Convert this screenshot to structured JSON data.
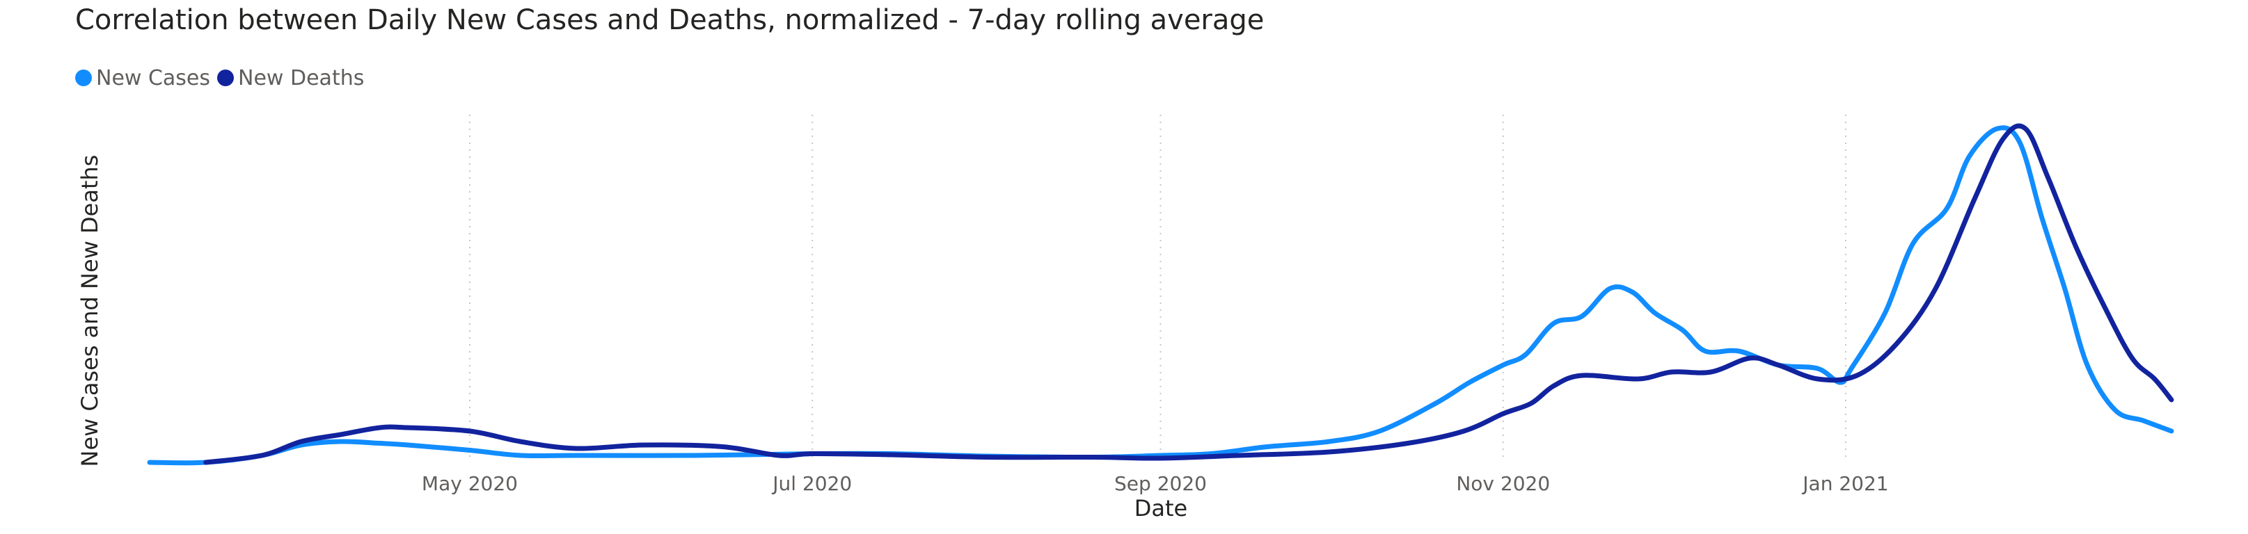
{
  "chart_data": {
    "type": "line",
    "title": "Correlation between Daily New Cases and Deaths, normalized - 7-day rolling average",
    "xlabel": "Date",
    "ylabel": "New Cases and New Deaths",
    "x_range": [
      "2020-03-05",
      "2021-02-28"
    ],
    "y_range": [
      0,
      1
    ],
    "grid": "vertical dotted at x ticks",
    "legend": "top-left",
    "x_ticks": [
      {
        "date": "2020-05-01",
        "label": "May 2020"
      },
      {
        "date": "2020-07-01",
        "label": "Jul 2020"
      },
      {
        "date": "2020-09-01",
        "label": "Sep 2020"
      },
      {
        "date": "2020-11-01",
        "label": "Nov 2020"
      },
      {
        "date": "2021-01-01",
        "label": "Jan 2021"
      }
    ],
    "series": [
      {
        "name": "New Cases",
        "color": "#118DFF",
        "points": [
          [
            "2020-03-05",
            0.0
          ],
          [
            "2020-03-15",
            0.0
          ],
          [
            "2020-03-25",
            0.02
          ],
          [
            "2020-04-01",
            0.05
          ],
          [
            "2020-04-08",
            0.06
          ],
          [
            "2020-04-15",
            0.055
          ],
          [
            "2020-04-20",
            0.05
          ],
          [
            "2020-05-01",
            0.035
          ],
          [
            "2020-05-10",
            0.02
          ],
          [
            "2020-05-20",
            0.02
          ],
          [
            "2020-06-10",
            0.02
          ],
          [
            "2020-07-01",
            0.025
          ],
          [
            "2020-07-15",
            0.025
          ],
          [
            "2020-08-01",
            0.018
          ],
          [
            "2020-08-20",
            0.015
          ],
          [
            "2020-09-01",
            0.02
          ],
          [
            "2020-09-10",
            0.025
          ],
          [
            "2020-09-20",
            0.045
          ],
          [
            "2020-10-01",
            0.06
          ],
          [
            "2020-10-10",
            0.09
          ],
          [
            "2020-10-20",
            0.17
          ],
          [
            "2020-10-26",
            0.23
          ],
          [
            "2020-11-01",
            0.28
          ],
          [
            "2020-11-05",
            0.31
          ],
          [
            "2020-11-10",
            0.4
          ],
          [
            "2020-11-15",
            0.42
          ],
          [
            "2020-11-20",
            0.5
          ],
          [
            "2020-11-24",
            0.49
          ],
          [
            "2020-11-28",
            0.43
          ],
          [
            "2020-12-03",
            0.38
          ],
          [
            "2020-12-07",
            0.32
          ],
          [
            "2020-12-13",
            0.32
          ],
          [
            "2020-12-20",
            0.28
          ],
          [
            "2020-12-27",
            0.27
          ],
          [
            "2020-12-31",
            0.23
          ],
          [
            "2021-01-02",
            0.27
          ],
          [
            "2021-01-08",
            0.43
          ],
          [
            "2021-01-13",
            0.63
          ],
          [
            "2021-01-19",
            0.73
          ],
          [
            "2021-01-23",
            0.88
          ],
          [
            "2021-01-28",
            0.96
          ],
          [
            "2021-02-01",
            0.92
          ],
          [
            "2021-02-05",
            0.7
          ],
          [
            "2021-02-09",
            0.5
          ],
          [
            "2021-02-13",
            0.28
          ],
          [
            "2021-02-18",
            0.15
          ],
          [
            "2021-02-23",
            0.12
          ],
          [
            "2021-02-28",
            0.09
          ]
        ]
      },
      {
        "name": "New Deaths",
        "color": "#12239E",
        "points": [
          [
            "2020-03-15",
            0.0
          ],
          [
            "2020-03-25",
            0.02
          ],
          [
            "2020-04-01",
            0.06
          ],
          [
            "2020-04-08",
            0.08
          ],
          [
            "2020-04-15",
            0.1
          ],
          [
            "2020-04-20",
            0.1
          ],
          [
            "2020-05-01",
            0.09
          ],
          [
            "2020-05-10",
            0.06
          ],
          [
            "2020-05-20",
            0.04
          ],
          [
            "2020-06-01",
            0.05
          ],
          [
            "2020-06-15",
            0.045
          ],
          [
            "2020-06-25",
            0.02
          ],
          [
            "2020-07-01",
            0.025
          ],
          [
            "2020-07-15",
            0.022
          ],
          [
            "2020-08-01",
            0.015
          ],
          [
            "2020-08-20",
            0.015
          ],
          [
            "2020-09-01",
            0.012
          ],
          [
            "2020-09-15",
            0.02
          ],
          [
            "2020-10-01",
            0.03
          ],
          [
            "2020-10-15",
            0.055
          ],
          [
            "2020-10-25",
            0.09
          ],
          [
            "2020-11-01",
            0.14
          ],
          [
            "2020-11-06",
            0.17
          ],
          [
            "2020-11-10",
            0.22
          ],
          [
            "2020-11-15",
            0.25
          ],
          [
            "2020-11-25",
            0.24
          ],
          [
            "2020-12-01",
            0.26
          ],
          [
            "2020-12-08",
            0.26
          ],
          [
            "2020-12-15",
            0.3
          ],
          [
            "2020-12-20",
            0.28
          ],
          [
            "2020-12-27",
            0.24
          ],
          [
            "2021-01-03",
            0.25
          ],
          [
            "2021-01-10",
            0.34
          ],
          [
            "2021-01-17",
            0.5
          ],
          [
            "2021-01-24",
            0.76
          ],
          [
            "2021-01-29",
            0.93
          ],
          [
            "2021-02-02",
            0.96
          ],
          [
            "2021-02-06",
            0.82
          ],
          [
            "2021-02-11",
            0.62
          ],
          [
            "2021-02-16",
            0.45
          ],
          [
            "2021-02-21",
            0.3
          ],
          [
            "2021-02-25",
            0.24
          ],
          [
            "2021-02-28",
            0.18
          ]
        ]
      }
    ]
  }
}
